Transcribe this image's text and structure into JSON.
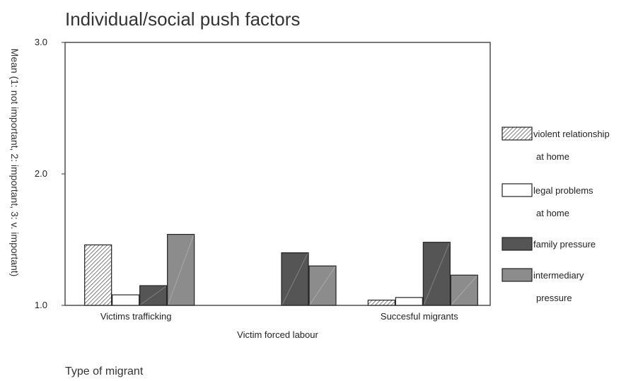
{
  "chart_data": {
    "type": "bar",
    "title": "Individual/social push factors",
    "ylabel": "Mean (1: not important, 2: important, 3: v. important)",
    "xlabel": "Type of migrant",
    "ylim": [
      1.0,
      3.0
    ],
    "yticks": [
      "1.0",
      "2.0",
      "3.0"
    ],
    "categories": [
      "Victims trafficking",
      "Victim forced labour",
      "Succesful migrants"
    ],
    "series": [
      {
        "name": "violent relationship at home",
        "legend_lines": [
          "violent relationship",
          "at home"
        ],
        "values": [
          1.46,
          1.0,
          1.04
        ],
        "pattern": "hatch",
        "color": "#ffffff"
      },
      {
        "name": "legal problems at home",
        "legend_lines": [
          "legal problems",
          "at home"
        ],
        "values": [
          1.08,
          1.0,
          1.06
        ],
        "pattern": "none",
        "color": "#ffffff"
      },
      {
        "name": "family pressure",
        "legend_lines": [
          "family pressure"
        ],
        "values": [
          1.15,
          1.4,
          1.48
        ],
        "pattern": "solid",
        "color": "#555555"
      },
      {
        "name": "intermediary pressure",
        "legend_lines": [
          "intermediary",
          "pressure"
        ],
        "values": [
          1.54,
          1.3,
          1.23
        ],
        "pattern": "solid",
        "color": "#8c8c8c"
      }
    ],
    "grid": false,
    "legend_position": "right"
  }
}
